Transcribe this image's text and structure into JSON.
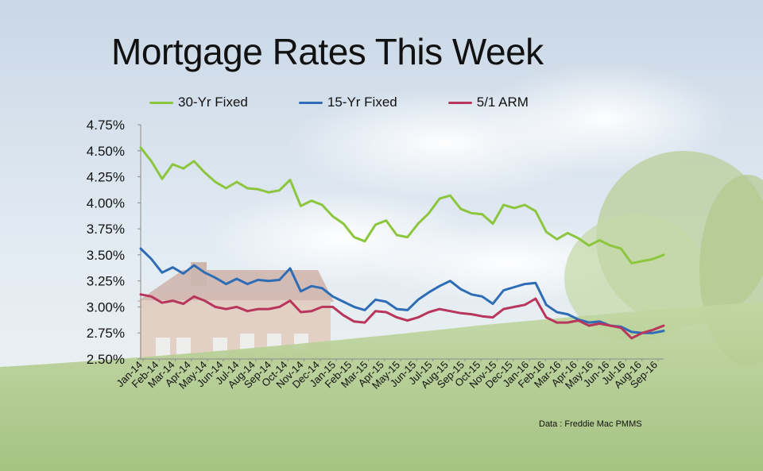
{
  "title": "Mortgage Rates This Week",
  "source": "Data : Freddie  Mac PMMS",
  "colors": {
    "series_30yr": "#8cc63f",
    "series_15yr": "#2e6db5",
    "series_arm": "#b8365c"
  },
  "chart_data": {
    "type": "line",
    "title": "Mortgage Rates This Week",
    "xlabel": "",
    "ylabel": "",
    "ylim": [
      2.5,
      4.75
    ],
    "yticks": [
      "4.75%",
      "4.50%",
      "4.25%",
      "4.00%",
      "3.75%",
      "3.50%",
      "3.25%",
      "3.00%",
      "2.75%",
      "2.50%"
    ],
    "xticks": [
      "Jan-14",
      "Feb-14",
      "Mar-14",
      "Apr-14",
      "May-14",
      "Jun-14",
      "Jul-14",
      "Aug-14",
      "Sep-14",
      "Oct-14",
      "Nov-14",
      "Dec-14",
      "Jan-15",
      "Feb-15",
      "Mar-15",
      "Apr-15",
      "May-15",
      "Jun-15",
      "Jul-15",
      "Aug-15",
      "Sep-15",
      "Oct-15",
      "Nov-15",
      "Dec-15",
      "Jan-16",
      "Feb-16",
      "Mar-16",
      "Apr-16",
      "May-16",
      "Jun-16",
      "Jul-16",
      "Aug-16",
      "Sep-16"
    ],
    "grid": false,
    "legend_position": "top",
    "series": [
      {
        "name": "30-Yr Fixed",
        "color": "#8cc63f",
        "values": [
          4.53,
          4.4,
          4.23,
          4.37,
          4.33,
          4.4,
          4.29,
          4.2,
          4.14,
          4.2,
          4.14,
          4.13,
          4.1,
          4.12,
          4.22,
          3.97,
          4.02,
          3.98,
          3.87,
          3.8,
          3.67,
          3.63,
          3.79,
          3.83,
          3.69,
          3.67,
          3.8,
          3.9,
          4.04,
          4.07,
          3.94,
          3.9,
          3.89,
          3.8,
          3.98,
          3.95,
          3.98,
          3.92,
          3.72,
          3.65,
          3.71,
          3.66,
          3.59,
          3.64,
          3.59,
          3.56,
          3.42,
          3.44,
          3.46,
          3.5
        ]
      },
      {
        "name": "15-Yr Fixed",
        "color": "#2e6db5",
        "values": [
          3.56,
          3.46,
          3.33,
          3.38,
          3.32,
          3.4,
          3.33,
          3.28,
          3.22,
          3.27,
          3.22,
          3.26,
          3.25,
          3.26,
          3.37,
          3.15,
          3.2,
          3.18,
          3.1,
          3.05,
          3.0,
          2.97,
          3.07,
          3.05,
          2.98,
          2.97,
          3.07,
          3.14,
          3.2,
          3.25,
          3.17,
          3.12,
          3.1,
          3.03,
          3.16,
          3.19,
          3.22,
          3.23,
          3.02,
          2.95,
          2.93,
          2.88,
          2.85,
          2.86,
          2.82,
          2.81,
          2.76,
          2.75,
          2.75,
          2.77
        ]
      },
      {
        "name": "5/1 ARM",
        "color": "#b8365c",
        "values": [
          3.12,
          3.1,
          3.04,
          3.06,
          3.03,
          3.1,
          3.06,
          3.0,
          2.98,
          3.0,
          2.96,
          2.98,
          2.98,
          3.0,
          3.06,
          2.95,
          2.96,
          3.0,
          3.0,
          2.92,
          2.86,
          2.85,
          2.96,
          2.95,
          2.9,
          2.87,
          2.9,
          2.95,
          2.98,
          2.96,
          2.94,
          2.93,
          2.91,
          2.9,
          2.98,
          3.0,
          3.02,
          3.08,
          2.9,
          2.85,
          2.85,
          2.87,
          2.82,
          2.84,
          2.82,
          2.8,
          2.7,
          2.75,
          2.78,
          2.82
        ]
      }
    ]
  }
}
